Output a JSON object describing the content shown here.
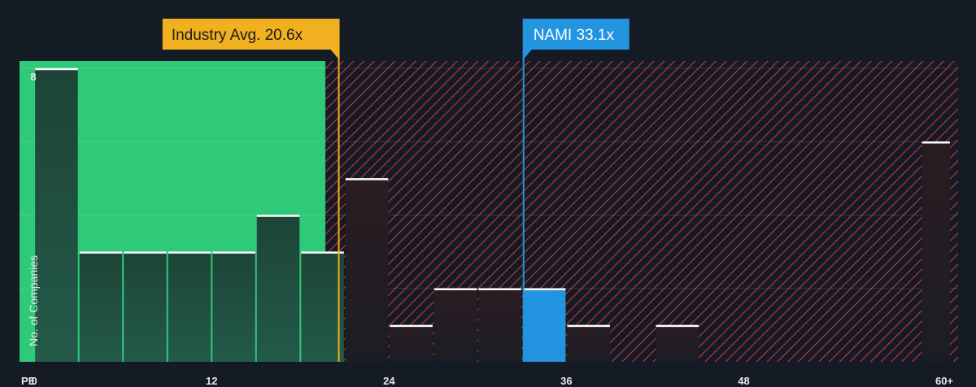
{
  "chart_data": {
    "type": "bar",
    "title": "",
    "xlabel": "PE",
    "ylabel": "No. of Companies",
    "xlim": [
      -1,
      62.5
    ],
    "ylim": [
      0,
      8.2
    ],
    "x_ticks": [
      0,
      12,
      24,
      36,
      48
    ],
    "x_tick_labels": [
      "0",
      "12",
      "24",
      "36",
      "48"
    ],
    "x_overflow_label": "60+",
    "y_ticks": [
      8
    ],
    "y_tick_labels": [
      "8"
    ],
    "bins": [
      {
        "x0": 0,
        "x1": 3,
        "value": 8
      },
      {
        "x0": 3,
        "x1": 6,
        "value": 3
      },
      {
        "x0": 6,
        "x1": 9,
        "value": 3
      },
      {
        "x0": 9,
        "x1": 12,
        "value": 3
      },
      {
        "x0": 12,
        "x1": 15,
        "value": 3
      },
      {
        "x0": 15,
        "x1": 18,
        "value": 4
      },
      {
        "x0": 18,
        "x1": 21,
        "value": 3
      },
      {
        "x0": 21,
        "x1": 24,
        "value": 5
      },
      {
        "x0": 24,
        "x1": 27,
        "value": 1
      },
      {
        "x0": 27,
        "x1": 30,
        "value": 2
      },
      {
        "x0": 30,
        "x1": 33,
        "value": 2
      },
      {
        "x0": 33,
        "x1": 36,
        "value": 2,
        "highlight": true
      },
      {
        "x0": 36,
        "x1": 39,
        "value": 1
      },
      {
        "x0": 39,
        "x1": 42,
        "value": 0
      },
      {
        "x0": 42,
        "x1": 45,
        "value": 1
      },
      {
        "x0": 45,
        "x1": 48,
        "value": 0
      },
      {
        "x0": 48,
        "x1": 51,
        "value": 0
      },
      {
        "x0": 51,
        "x1": 54,
        "value": 0
      },
      {
        "x0": 54,
        "x1": 57,
        "value": 0
      },
      {
        "x0": 57,
        "x1": 60,
        "value": 0
      },
      {
        "x0": 60,
        "x1": 62,
        "value": 6
      }
    ],
    "industry_avg": {
      "value": 20.6,
      "label": "Industry Avg. 20.6x",
      "color": "#f0b01f"
    },
    "company": {
      "value": 33.1,
      "label": "NAMI 33.1x",
      "color": "#2394e0"
    },
    "fair_region_end": 19.7,
    "colors": {
      "background": "#151b24",
      "fair_region": "#2fc97a",
      "bar_fill": "#1f4a3e",
      "overvalued_hatch": "#c4383e",
      "bar_top": "#ffffff",
      "highlight_bar": "#2394e0"
    }
  }
}
